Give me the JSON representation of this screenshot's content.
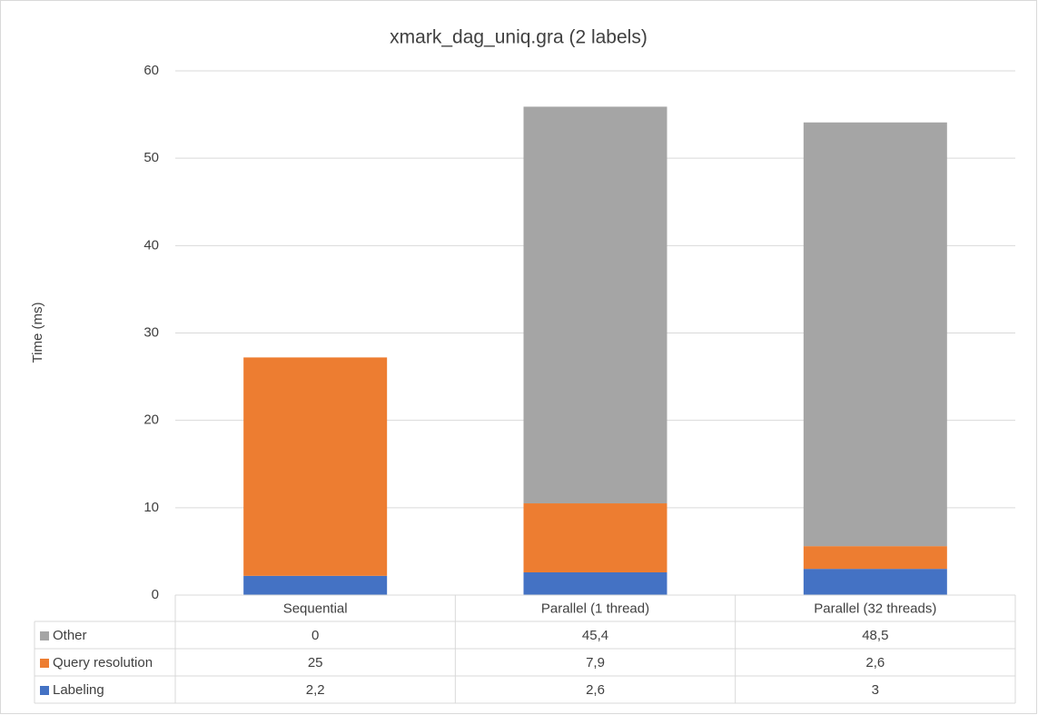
{
  "chart_data": {
    "type": "stacked_bar",
    "title": "xmark_dag_uniq.gra  (2 labels)",
    "y_label": "Time (ms)",
    "categories": [
      "Sequential",
      "Parallel (1 thread)",
      "Parallel (32 threads)"
    ],
    "series": [
      {
        "name": "Labeling",
        "color": "#4472c4",
        "values": [
          2.2,
          2.6,
          3
        ],
        "value_labels": [
          "2,2",
          "2,6",
          "3"
        ]
      },
      {
        "name": "Query resolution",
        "color": "#ed7d31",
        "values": [
          25,
          7.9,
          2.6
        ],
        "value_labels": [
          "25",
          "7,9",
          "2,6"
        ]
      },
      {
        "name": "Other",
        "color": "#a5a5a5",
        "values": [
          0,
          45.4,
          48.5
        ],
        "value_labels": [
          "0",
          "45,4",
          "48,5"
        ]
      }
    ],
    "ylim": [
      0,
      60
    ],
    "yticks": [
      0,
      10,
      20,
      30,
      40,
      50,
      60
    ],
    "grid": true,
    "legend": "data-table"
  }
}
